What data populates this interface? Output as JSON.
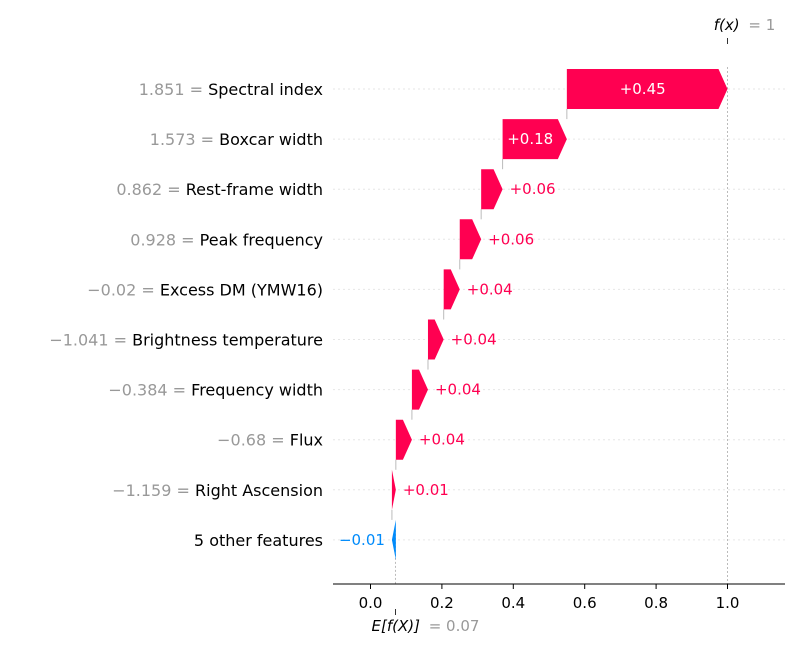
{
  "chart_data": {
    "type": "waterfall",
    "fx_label": "f(x)",
    "fx_value": "= 1",
    "base_label": "E[f(X)]",
    "base_value_text": "= 0.07",
    "base_value": 0.07,
    "final_value": 1.0,
    "xlim": [
      -0.105,
      1.16
    ],
    "xticks": [
      0.0,
      0.2,
      0.4,
      0.6,
      0.8,
      1.0
    ],
    "xtick_labels": [
      "0.0",
      "0.2",
      "0.4",
      "0.6",
      "0.8",
      "1.0"
    ],
    "colors": {
      "positive": "#ff0051",
      "negative": "#008bfb",
      "muted": "#999999",
      "text": "#000000"
    },
    "features": [
      {
        "value": "1.851",
        "eq": "=",
        "name": "Spectral index",
        "contribution": 0.45,
        "label": "+0.45"
      },
      {
        "value": "1.573",
        "eq": "=",
        "name": "Boxcar width",
        "contribution": 0.18,
        "label": "+0.18"
      },
      {
        "value": "0.862",
        "eq": "=",
        "name": "Rest-frame width",
        "contribution": 0.06,
        "label": "+0.06"
      },
      {
        "value": "0.928",
        "eq": "=",
        "name": "Peak frequency",
        "contribution": 0.06,
        "label": "+0.06"
      },
      {
        "value": "−0.02",
        "eq": "=",
        "name": "Excess DM (YMW16)",
        "contribution": 0.045,
        "label": "+0.04"
      },
      {
        "value": "−1.041",
        "eq": "=",
        "name": "Brightness temperature",
        "contribution": 0.044,
        "label": "+0.04"
      },
      {
        "value": "−0.384",
        "eq": "=",
        "name": "Frequency width",
        "contribution": 0.045,
        "label": "+0.04"
      },
      {
        "value": "−0.68",
        "eq": "=",
        "name": "Flux",
        "contribution": 0.045,
        "label": "+0.04"
      },
      {
        "value": "−1.159",
        "eq": "=",
        "name": "Right Ascension",
        "contribution": 0.011,
        "label": "+0.01"
      },
      {
        "value": "",
        "eq": "",
        "name": "5 other features",
        "contribution": -0.011,
        "label": "−0.01"
      }
    ]
  }
}
